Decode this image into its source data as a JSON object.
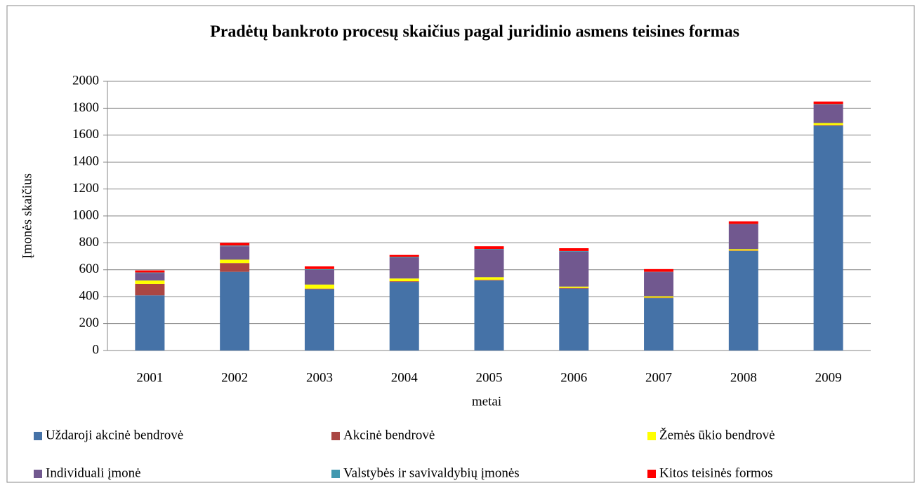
{
  "chart_data": {
    "type": "stacked_bar",
    "title": "Pradėtų bankroto procesų skaičius pagal juridinio asmens teisines formas",
    "x_label": "metai",
    "y_label": "Įmonės skaičius",
    "categories": [
      "2001",
      "2002",
      "2003",
      "2004",
      "2005",
      "2006",
      "2007",
      "2008",
      "2009"
    ],
    "series": [
      {
        "name": "Uždaroji akcinė bendrovė",
        "color": "#4572a7",
        "values": [
          410,
          585,
          455,
          510,
          520,
          460,
          390,
          740,
          1670
        ]
      },
      {
        "name": "Akcinė bendrovė",
        "color": "#aa4643",
        "values": [
          85,
          65,
          5,
          5,
          5,
          5,
          3,
          3,
          5
        ]
      },
      {
        "name": "Žemės ūkio bendrovė",
        "color": "#ffff00",
        "values": [
          25,
          25,
          30,
          20,
          20,
          10,
          10,
          10,
          15
        ]
      },
      {
        "name": "Individuali įmonė",
        "color": "#71588f",
        "values": [
          55,
          100,
          110,
          155,
          205,
          260,
          180,
          185,
          135
        ]
      },
      {
        "name": "Valstybės ir savivaldybių įmonės",
        "color": "#4198af",
        "values": [
          5,
          5,
          5,
          5,
          5,
          5,
          2,
          2,
          5
        ]
      },
      {
        "name": "Kitos teisinės formos",
        "color": "#ff0000",
        "values": [
          15,
          20,
          20,
          15,
          20,
          20,
          20,
          20,
          20
        ]
      }
    ],
    "ylim": [
      0,
      2000
    ],
    "yticks": [
      0,
      200,
      400,
      600,
      800,
      1000,
      1200,
      1400,
      1600,
      1800,
      2000
    ],
    "grid": true,
    "legend": "bottom"
  }
}
